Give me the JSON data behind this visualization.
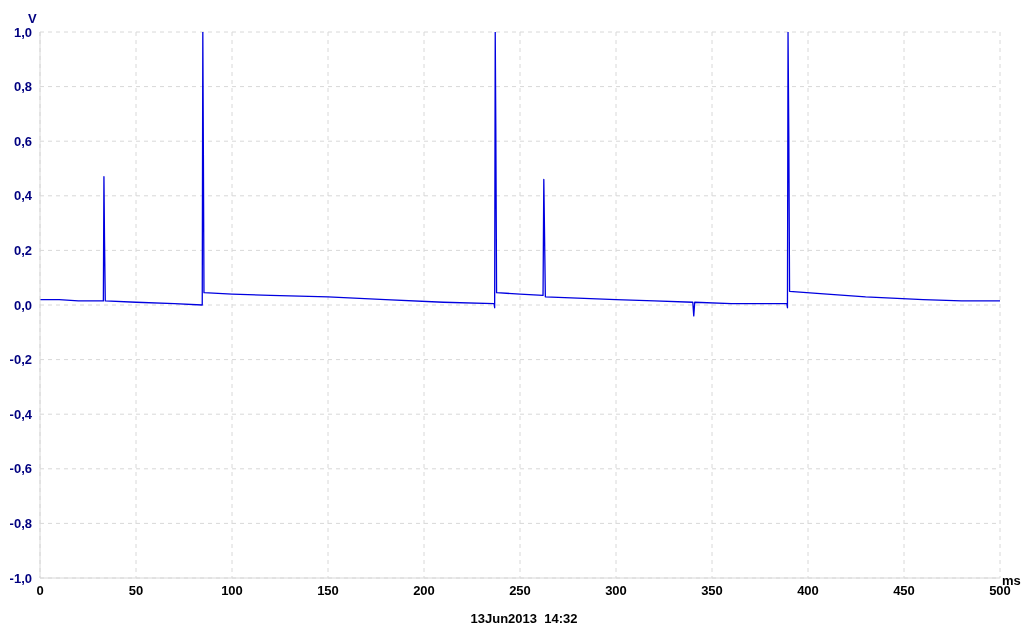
{
  "chart_data": {
    "type": "line",
    "xlabel": "ms",
    "ylabel": "V",
    "annotations": [
      "13Jun2013  14:32"
    ],
    "x": [
      0,
      10,
      20,
      33,
      33.3,
      33.6,
      34,
      50,
      70,
      84.5,
      84.8,
      85.1,
      85.4,
      100,
      120,
      150,
      180,
      210,
      236.5,
      236.8,
      237.1,
      237.4,
      237.8,
      250,
      262,
      262.4,
      262.8,
      263.2,
      280,
      300,
      320,
      340,
      340.5,
      341,
      360,
      389,
      389.3,
      389.6,
      390,
      390.4,
      410,
      430,
      460,
      480,
      500
    ],
    "series": [
      {
        "color": "#0000e0",
        "values": [
          0.02,
          0.02,
          0.015,
          0.015,
          0.47,
          0.24,
          0.015,
          0.01,
          0.005,
          0.0,
          1.0,
          0.55,
          0.045,
          0.04,
          0.035,
          0.03,
          0.02,
          0.01,
          0.005,
          -0.01,
          1.0,
          0.65,
          0.045,
          0.04,
          0.035,
          0.46,
          0.25,
          0.03,
          0.025,
          0.02,
          0.015,
          0.01,
          -0.04,
          0.01,
          0.005,
          0.005,
          -0.01,
          1.0,
          0.62,
          0.05,
          0.04,
          0.03,
          0.02,
          0.015,
          0.015
        ]
      }
    ],
    "xlim": [
      0,
      500
    ],
    "xticks": [
      0,
      50,
      100,
      150,
      200,
      250,
      300,
      350,
      400,
      450,
      500
    ],
    "ylim": [
      -1,
      1
    ],
    "yticks": [
      {
        "value": -1,
        "label": "-1,0"
      },
      {
        "value": -0.8,
        "label": "-0,8"
      },
      {
        "value": -0.6,
        "label": "-0,6"
      },
      {
        "value": -0.4,
        "label": "-0,4"
      },
      {
        "value": -0.2,
        "label": "-0,2"
      },
      {
        "value": 0,
        "label": "0,0"
      },
      {
        "value": 0.2,
        "label": "0,2"
      },
      {
        "value": 0.4,
        "label": "0,4"
      },
      {
        "value": 0.6,
        "label": "0,6"
      },
      {
        "value": 0.8,
        "label": "0,8"
      },
      {
        "value": 1,
        "label": "1,0"
      }
    ],
    "grid": true,
    "legend": false,
    "marker": "none",
    "line_style": "solid"
  }
}
